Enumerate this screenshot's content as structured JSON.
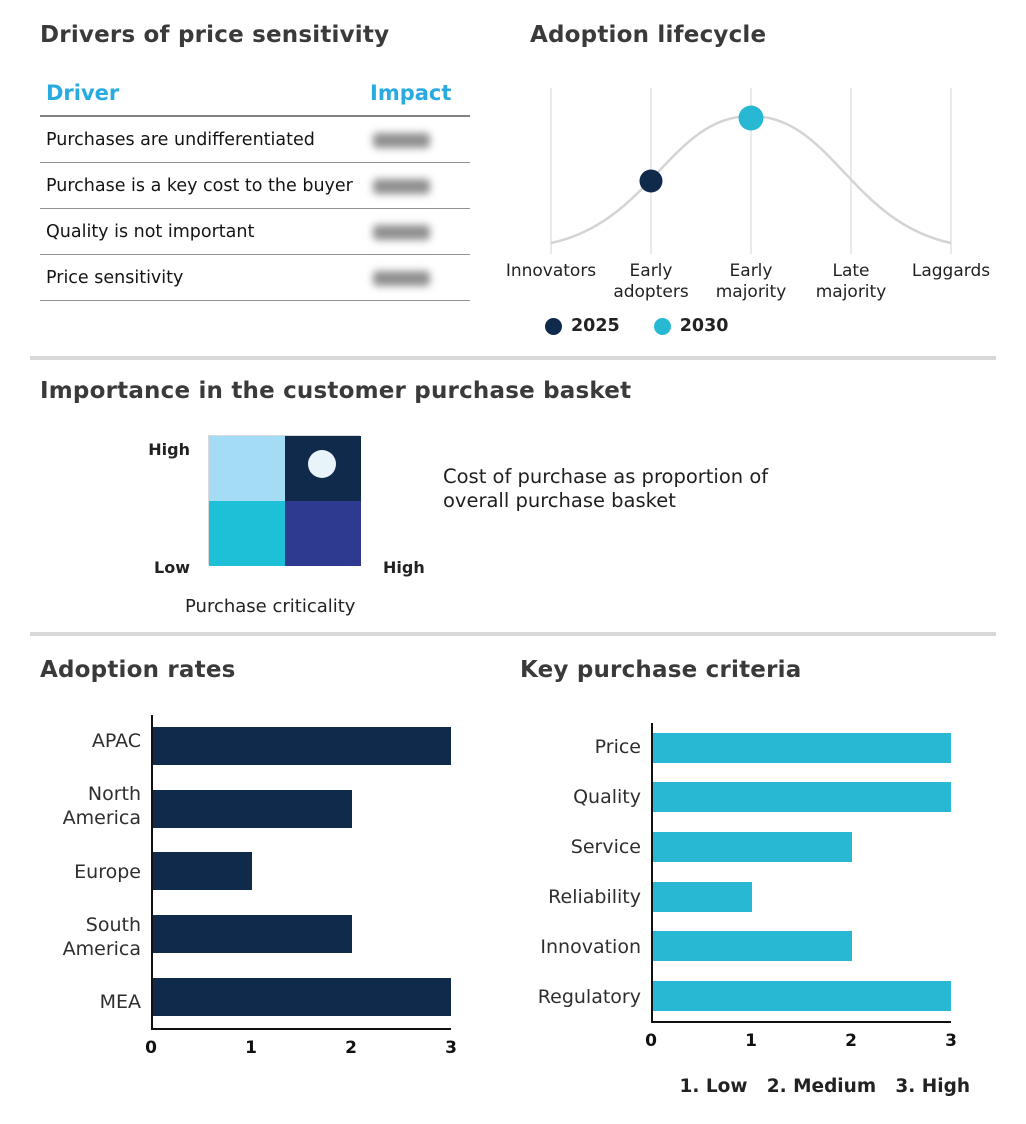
{
  "colors": {
    "navy": "#102A4C",
    "cyan": "#29B8D4",
    "header_cyan": "#29ABE2",
    "curve_gray": "#D4D4D4",
    "gridline_gray": "#E3E3E3",
    "divider_gray": "#D8D8D8",
    "marker_white": "#E9F3FA"
  },
  "drivers": {
    "title": "Drivers of price sensitivity",
    "columns": {
      "driver": "Driver",
      "impact": "Impact"
    },
    "rows": [
      {
        "driver": "Purchases are undifferentiated",
        "impact_redacted": true
      },
      {
        "driver": "Purchase is a key cost to the buyer",
        "impact_redacted": true
      },
      {
        "driver": "Quality is not important",
        "impact_redacted": true
      },
      {
        "driver": "Price sensitivity",
        "impact_redacted": true
      }
    ]
  },
  "lifecycle": {
    "title": "Adoption lifecycle",
    "categories": [
      {
        "lines": [
          "Innovators"
        ]
      },
      {
        "lines": [
          "Early",
          "adopters"
        ]
      },
      {
        "lines": [
          "Early",
          "majority"
        ]
      },
      {
        "lines": [
          "Late",
          "majority"
        ]
      },
      {
        "lines": [
          "Laggards"
        ]
      }
    ],
    "legend": [
      {
        "label": "2025",
        "color": "#102A4C"
      },
      {
        "label": "2030",
        "color": "#29B8D4"
      }
    ]
  },
  "basket": {
    "title": "Importance in the customer purchase basket",
    "y_top_label": "High",
    "y_bottom_label": "Low",
    "x_right_label": "High",
    "x_axis_label": "Purchase criticality",
    "annotation_lines": [
      "Cost of purchase as proportion of",
      "overall purchase basket"
    ],
    "quadrants": {
      "top_left": "#A4DCF5",
      "top_right": "#102A4C",
      "bottom_left": "#1EC0D8",
      "bottom_right": "#2E3A8F"
    }
  },
  "adoption": {
    "title": "Adoption rates"
  },
  "criteria": {
    "title": "Key purchase criteria",
    "footer": "1. Low   2. Medium   3. High"
  },
  "chart_data": [
    {
      "type": "table",
      "title": "Drivers of price sensitivity",
      "columns": [
        "Driver",
        "Impact"
      ],
      "rows": [
        [
          "Purchases are undifferentiated",
          "(blurred)"
        ],
        [
          "Purchase is a key cost to the buyer",
          "(blurred)"
        ],
        [
          "Quality is not important",
          "(blurred)"
        ],
        [
          "Price sensitivity",
          "(blurred)"
        ]
      ]
    },
    {
      "type": "line",
      "title": "Adoption lifecycle",
      "categories": [
        "Innovators",
        "Early adopters",
        "Early majority",
        "Late majority",
        "Laggards"
      ],
      "description": "Gray bell curve peaking at Early majority; year markers placed on the curve",
      "markers": [
        {
          "series": "2025",
          "category": "Early adopters",
          "color": "#102A4C"
        },
        {
          "series": "2030",
          "category": "Early majority",
          "color": "#29B8D4"
        }
      ],
      "legend": [
        "2025",
        "2030"
      ],
      "legend_position": "bottom",
      "grid": true
    },
    {
      "type": "other",
      "subtype": "2x2-quadrant-matrix",
      "title": "Importance in the customer purchase basket",
      "x_axis_label": "Purchase criticality",
      "x_range": [
        "",
        "High"
      ],
      "y_range": [
        "Low",
        "High"
      ],
      "marker": "light circle in top-right (High importance / High criticality) quadrant",
      "annotation": "Cost of purchase as proportion of overall purchase basket"
    },
    {
      "type": "bar",
      "title": "Adoption rates",
      "orientation": "horizontal",
      "categories": [
        "APAC",
        "North America",
        "Europe",
        "South America",
        "MEA"
      ],
      "values": [
        3,
        2,
        1,
        2,
        3
      ],
      "xlim": [
        0,
        3
      ],
      "xticks": [
        0,
        1,
        2,
        3
      ],
      "bar_color": "#102A4C"
    },
    {
      "type": "bar",
      "title": "Key purchase criteria",
      "orientation": "horizontal",
      "categories": [
        "Price",
        "Quality",
        "Service",
        "Reliability",
        "Innovation",
        "Regulatory"
      ],
      "values": [
        3,
        3,
        2,
        1,
        2,
        3
      ],
      "xlim": [
        0,
        3
      ],
      "xticks": [
        0,
        1,
        2,
        3
      ],
      "bar_color": "#29B8D4",
      "scale_note": "1. Low   2. Medium   3. High"
    }
  ]
}
